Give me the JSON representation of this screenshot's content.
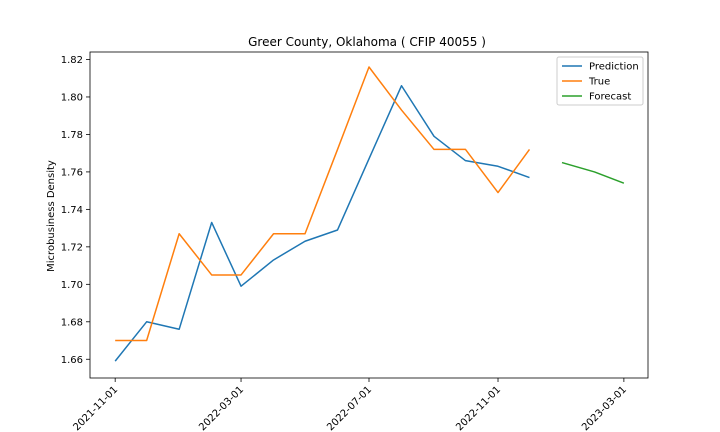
{
  "chart_data": {
    "type": "line",
    "title": "Greer County, Oklahoma ( CFIP 40055 )",
    "xlabel": "",
    "ylabel": "Microbusiness Density",
    "xlim": [
      "2021-10-08",
      "2023-03-24"
    ],
    "ylim": [
      1.65,
      1.824
    ],
    "x_ticks": [
      "2021-11-01",
      "2022-03-01",
      "2022-07-01",
      "2022-11-01",
      "2023-03-01"
    ],
    "y_ticks": [
      1.66,
      1.68,
      1.7,
      1.72,
      1.74,
      1.76,
      1.78,
      1.8,
      1.82
    ],
    "y_tick_labels": [
      "1.66",
      "1.68",
      "1.70",
      "1.72",
      "1.74",
      "1.76",
      "1.78",
      "1.80",
      "1.82"
    ],
    "legend_position": "top-right",
    "series": [
      {
        "name": "Prediction",
        "color": "#1f77b4",
        "x": [
          "2021-11-01",
          "2021-12-01",
          "2022-01-01",
          "2022-02-01",
          "2022-03-01",
          "2022-04-01",
          "2022-05-01",
          "2022-06-01",
          "2022-07-01",
          "2022-08-01",
          "2022-09-01",
          "2022-10-01",
          "2022-11-01",
          "2022-12-01"
        ],
        "y": [
          1.659,
          1.68,
          1.676,
          1.733,
          1.699,
          1.713,
          1.723,
          1.729,
          1.767,
          1.806,
          1.779,
          1.766,
          1.763,
          1.757
        ]
      },
      {
        "name": "True",
        "color": "#ff7f0e",
        "x": [
          "2021-11-01",
          "2021-12-01",
          "2022-01-01",
          "2022-02-01",
          "2022-03-01",
          "2022-04-01",
          "2022-05-01",
          "2022-06-01",
          "2022-07-01",
          "2022-08-01",
          "2022-09-01",
          "2022-10-01",
          "2022-11-01",
          "2022-12-01"
        ],
        "y": [
          1.67,
          1.67,
          1.727,
          1.705,
          1.705,
          1.727,
          1.727,
          1.772,
          1.816,
          1.793,
          1.772,
          1.772,
          1.749,
          1.772
        ]
      },
      {
        "name": "Forecast",
        "color": "#2ca02c",
        "x": [
          "2023-01-01",
          "2023-02-01",
          "2023-03-01"
        ],
        "y": [
          1.765,
          1.76,
          1.754
        ]
      }
    ]
  }
}
